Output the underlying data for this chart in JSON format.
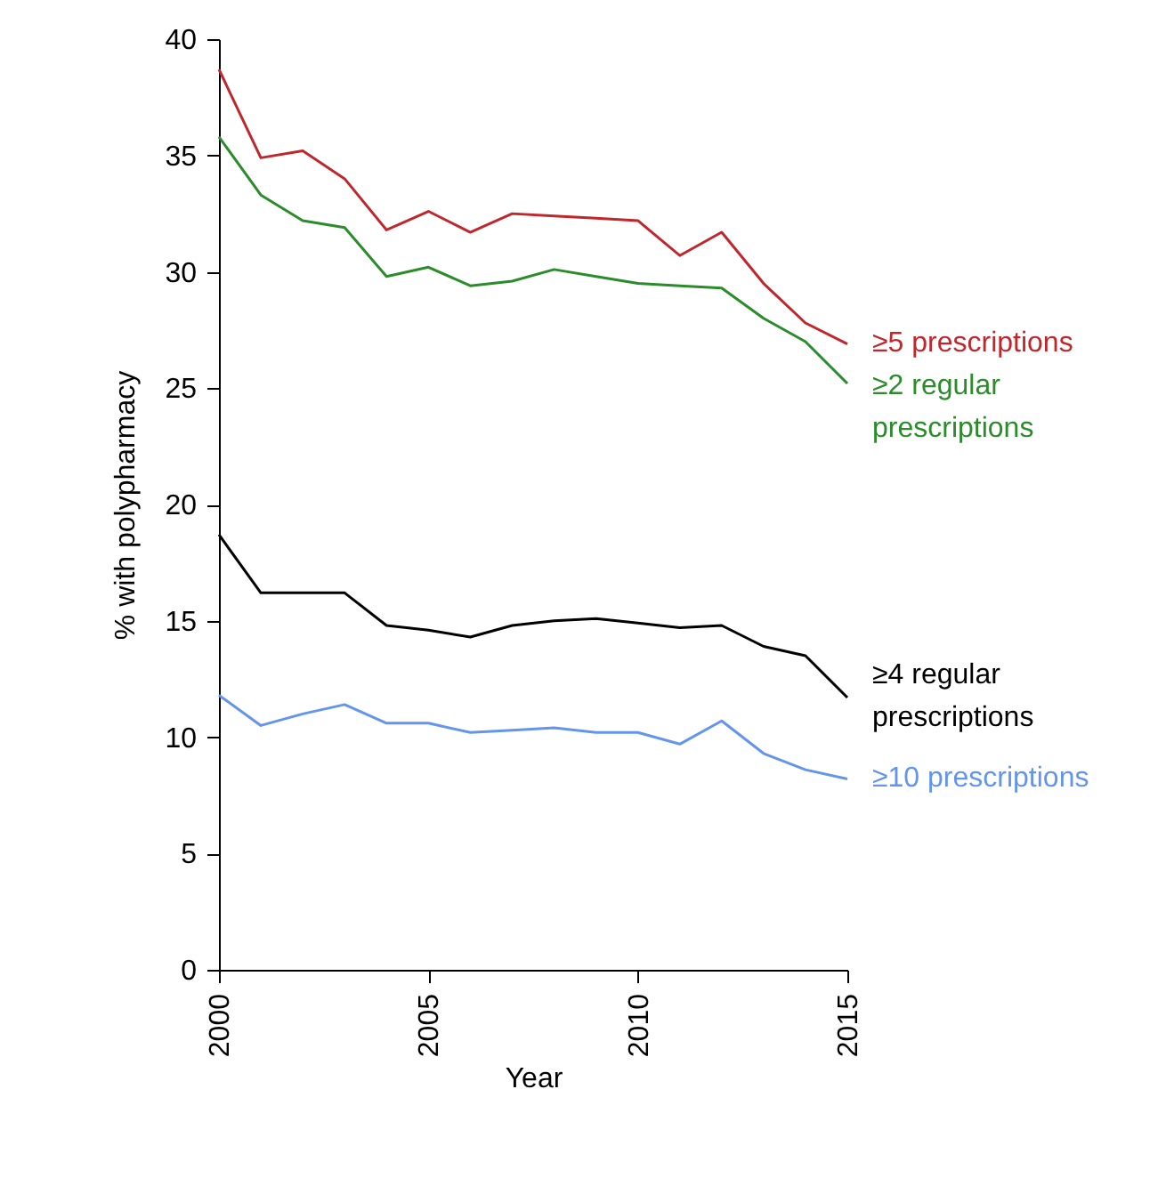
{
  "chart_data": {
    "type": "line",
    "xlabel": "Year",
    "ylabel": "% with polypharmacy",
    "x": [
      2000,
      2001,
      2002,
      2003,
      2004,
      2005,
      2006,
      2007,
      2008,
      2009,
      2010,
      2011,
      2012,
      2013,
      2014,
      2015
    ],
    "series": [
      {
        "name": "≥5 prescriptions",
        "color": "#c0272d",
        "values": [
          38.7,
          34.9,
          35.2,
          34.0,
          31.8,
          32.6,
          31.7,
          32.5,
          32.4,
          32.3,
          32.2,
          30.7,
          31.7,
          29.5,
          27.8,
          26.9
        ]
      },
      {
        "name": "≥2 regular prescriptions",
        "color": "#2a8c2a",
        "values": [
          35.8,
          33.3,
          32.2,
          31.9,
          29.8,
          30.2,
          29.4,
          29.6,
          30.1,
          29.8,
          29.5,
          29.4,
          29.3,
          28.0,
          27.0,
          25.2
        ]
      },
      {
        "name": "≥4 regular prescriptions",
        "color": "#000000",
        "values": [
          18.7,
          16.2,
          16.2,
          16.2,
          14.8,
          14.6,
          14.3,
          14.8,
          15.0,
          15.1,
          14.9,
          14.7,
          14.8,
          13.9,
          13.5,
          11.7
        ]
      },
      {
        "name": "≥10 prescriptions",
        "color": "#6495ed",
        "values": [
          11.8,
          10.5,
          11.0,
          11.4,
          10.6,
          10.6,
          10.2,
          10.3,
          10.4,
          10.2,
          10.2,
          9.7,
          10.7,
          9.3,
          8.6,
          8.2
        ]
      }
    ],
    "xlim": [
      2000,
      2015
    ],
    "xticks": [
      2000,
      2005,
      2010,
      2015
    ],
    "ylim": [
      0,
      40
    ],
    "yticks": [
      0,
      5,
      10,
      15,
      20,
      25,
      30,
      35,
      40
    ],
    "grid": false,
    "legend": false,
    "marker": "none",
    "line_style": "solid"
  }
}
